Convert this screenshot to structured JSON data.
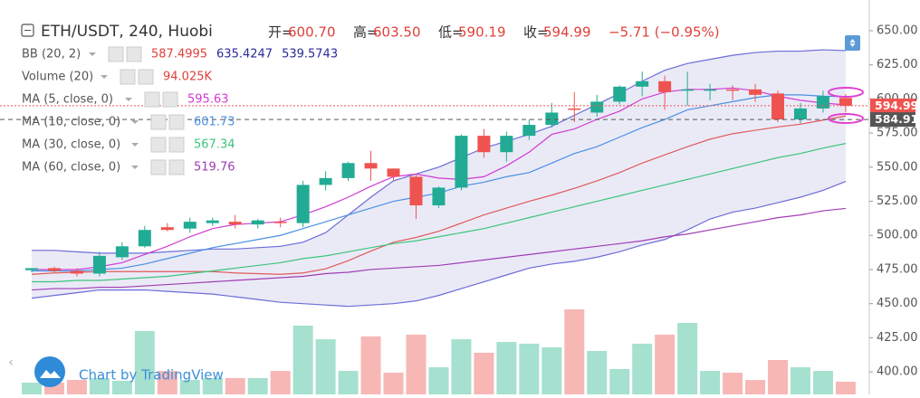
{
  "header": {
    "symbol": "ETH/USDT, 240, Huobi",
    "ohlc": [
      {
        "label": "开=",
        "value": "600.70"
      },
      {
        "label": "高=",
        "value": "603.50"
      },
      {
        "label": "低=",
        "value": "590.19"
      },
      {
        "label": "收=",
        "value": "594.99"
      }
    ],
    "change": "−5.71 (−0.95%)"
  },
  "watermark": "Chart by TradingView",
  "chart_data": {
    "type": "candlestick",
    "ylim": [
      383.5,
      672.5
    ],
    "yticks": [
      {
        "value": 650,
        "label": "650.00"
      },
      {
        "value": 625,
        "label": "625.00"
      },
      {
        "value": 600,
        "label": "600.00"
      },
      {
        "value": 575,
        "label": "575.00"
      },
      {
        "value": 550,
        "label": "550.00"
      },
      {
        "value": 525,
        "label": "525.00"
      },
      {
        "value": 500,
        "label": "500.00"
      },
      {
        "value": 475,
        "label": "475.00"
      },
      {
        "value": 450,
        "label": "450.00"
      },
      {
        "value": 425,
        "label": "425.00"
      },
      {
        "value": 400,
        "label": "400.00"
      }
    ],
    "up_color": "#22ab94",
    "down_color": "#ef5350",
    "open": [
      474.5,
      476,
      474,
      472,
      484,
      492,
      506,
      505,
      509,
      510,
      508,
      510,
      509,
      537,
      542,
      553,
      549,
      543,
      522,
      535,
      573,
      561,
      573,
      581,
      593,
      590,
      598,
      609,
      613,
      606,
      606,
      607,
      607,
      604,
      585,
      593,
      600.7
    ],
    "high": [
      476,
      477,
      476,
      488,
      495,
      507,
      509,
      513,
      513,
      515,
      512,
      513,
      540,
      547,
      554,
      562,
      549,
      545,
      536,
      574,
      578,
      576,
      585,
      597,
      605,
      603,
      610,
      620,
      617,
      620,
      611,
      610,
      611,
      606,
      597,
      606,
      603.5
    ],
    "low": [
      473,
      473,
      470,
      470,
      482,
      491,
      503,
      502,
      507,
      505,
      505,
      506,
      506,
      533,
      540,
      540,
      540,
      512,
      520,
      533,
      557,
      554,
      570,
      579,
      583,
      587,
      596,
      602,
      592,
      595,
      599,
      599,
      598,
      583,
      582,
      590,
      590.19
    ],
    "close": [
      476,
      474,
      472,
      485,
      492,
      504,
      504,
      510,
      511,
      508,
      511,
      509,
      537,
      542,
      553,
      549,
      543,
      522,
      535,
      573,
      561,
      573,
      581,
      590,
      592,
      598,
      609,
      613,
      605,
      607,
      607,
      606,
      603,
      585,
      593,
      602,
      594.99
    ],
    "volume": {
      "name": "Volume (20)",
      "up_color": "#a6e0cf",
      "down_color": "#f7b7b5",
      "values": [
        87,
        87,
        107,
        121,
        101,
        470,
        174,
        107,
        121,
        121,
        121,
        174,
        510,
        409,
        174,
        430,
        161,
        443,
        201,
        409,
        309,
        389,
        376,
        349,
        631,
        322,
        188,
        376,
        443,
        530,
        174,
        161,
        107,
        255,
        201,
        174,
        94.025
      ],
      "value_labels": [
        null,
        null,
        null,
        null,
        null,
        null,
        null,
        null,
        null,
        null,
        null,
        null,
        null,
        null,
        null,
        null,
        null,
        null,
        null,
        null,
        null,
        null,
        null,
        null,
        null,
        null,
        null,
        null,
        null,
        null,
        null,
        null,
        null,
        null,
        null,
        null,
        "94.025K"
      ]
    },
    "bb": {
      "name": "BB (20, 2)",
      "fill": "#d8d8f0",
      "middle": {
        "color": "#e05a5a",
        "values": [
          471.5,
          472.5,
          473,
          473.5,
          473.5,
          473.5,
          473.5,
          473.5,
          473.5,
          472.5,
          472,
          471.5,
          472.5,
          475.5,
          481.5,
          488.5,
          495,
          498.5,
          503,
          509,
          515,
          520,
          525,
          529.5,
          534.5,
          540,
          546,
          553,
          559,
          565,
          570.5,
          574.5,
          577,
          579.5,
          581.5,
          584.5,
          587.4995
        ]
      },
      "upper": {
        "color": "#6c6cd8",
        "values": [
          489,
          489,
          488,
          487,
          487,
          487,
          488,
          489,
          490,
          490,
          491,
          492,
          495,
          502,
          515,
          528,
          540,
          545,
          550,
          557,
          564,
          569,
          574,
          580,
          588,
          596,
          604,
          613,
          621,
          626,
          629,
          632,
          634,
          635,
          635,
          636,
          635.4247
        ]
      },
      "lower": {
        "color": "#6c6cd8",
        "values": [
          454,
          456,
          458,
          460,
          460,
          460,
          459,
          458,
          457,
          455,
          453,
          451,
          450,
          449,
          448,
          449,
          450,
          452,
          456,
          461,
          466,
          471,
          476,
          479,
          481,
          484,
          488,
          493,
          497,
          504,
          512,
          517,
          520,
          524,
          528,
          533,
          539.5743
        ]
      }
    },
    "series": [
      {
        "name": "MA (5, close, 0)",
        "color": "#d23ad2",
        "values": [
          475,
          475,
          475,
          477,
          480,
          486,
          492,
          499,
          505,
          508,
          509,
          510,
          515,
          521,
          528,
          536,
          543,
          545,
          542,
          541,
          543,
          551,
          561,
          574,
          578,
          585,
          591,
          600,
          605,
          607,
          607,
          608,
          606,
          602,
          599,
          597,
          595.63
        ]
      },
      {
        "name": "MA (10, close, 0)",
        "color": "#4a90e2",
        "values": [
          474,
          474,
          474,
          475,
          476,
          479,
          483,
          487,
          491,
          494,
          497,
          500,
          505,
          510,
          515,
          520,
          525,
          528,
          531,
          536,
          539,
          543,
          546,
          553,
          560,
          565,
          572,
          579,
          585,
          592,
          595,
          598,
          601,
          603,
          603,
          602,
          601.73
        ]
      },
      {
        "name": "MA (30, close, 0)",
        "color": "#3cc47a",
        "values": [
          466,
          466,
          467,
          467,
          468,
          469,
          470,
          472,
          474,
          476,
          478,
          480,
          483,
          485,
          488,
          491,
          494,
          496,
          499,
          502,
          505,
          509,
          513,
          517,
          521,
          525,
          529,
          533,
          537,
          541,
          545,
          549,
          553,
          557,
          560,
          564,
          567.34
        ]
      },
      {
        "name": "MA (60, close, 0)",
        "color": "#a03cb4",
        "values": [
          460,
          461,
          461,
          462,
          462,
          463,
          464,
          465,
          466,
          467,
          468,
          469,
          470,
          472,
          473,
          475,
          476,
          477,
          478,
          480,
          482,
          484,
          486,
          488,
          490,
          492,
          494,
          496,
          499,
          501,
          504,
          507,
          510,
          513,
          515,
          518,
          519.76
        ]
      }
    ],
    "price_lines": [
      {
        "value": 594.99,
        "color": "#ef5350"
      },
      {
        "value": 584.91,
        "color": "#555555"
      }
    ]
  }
}
